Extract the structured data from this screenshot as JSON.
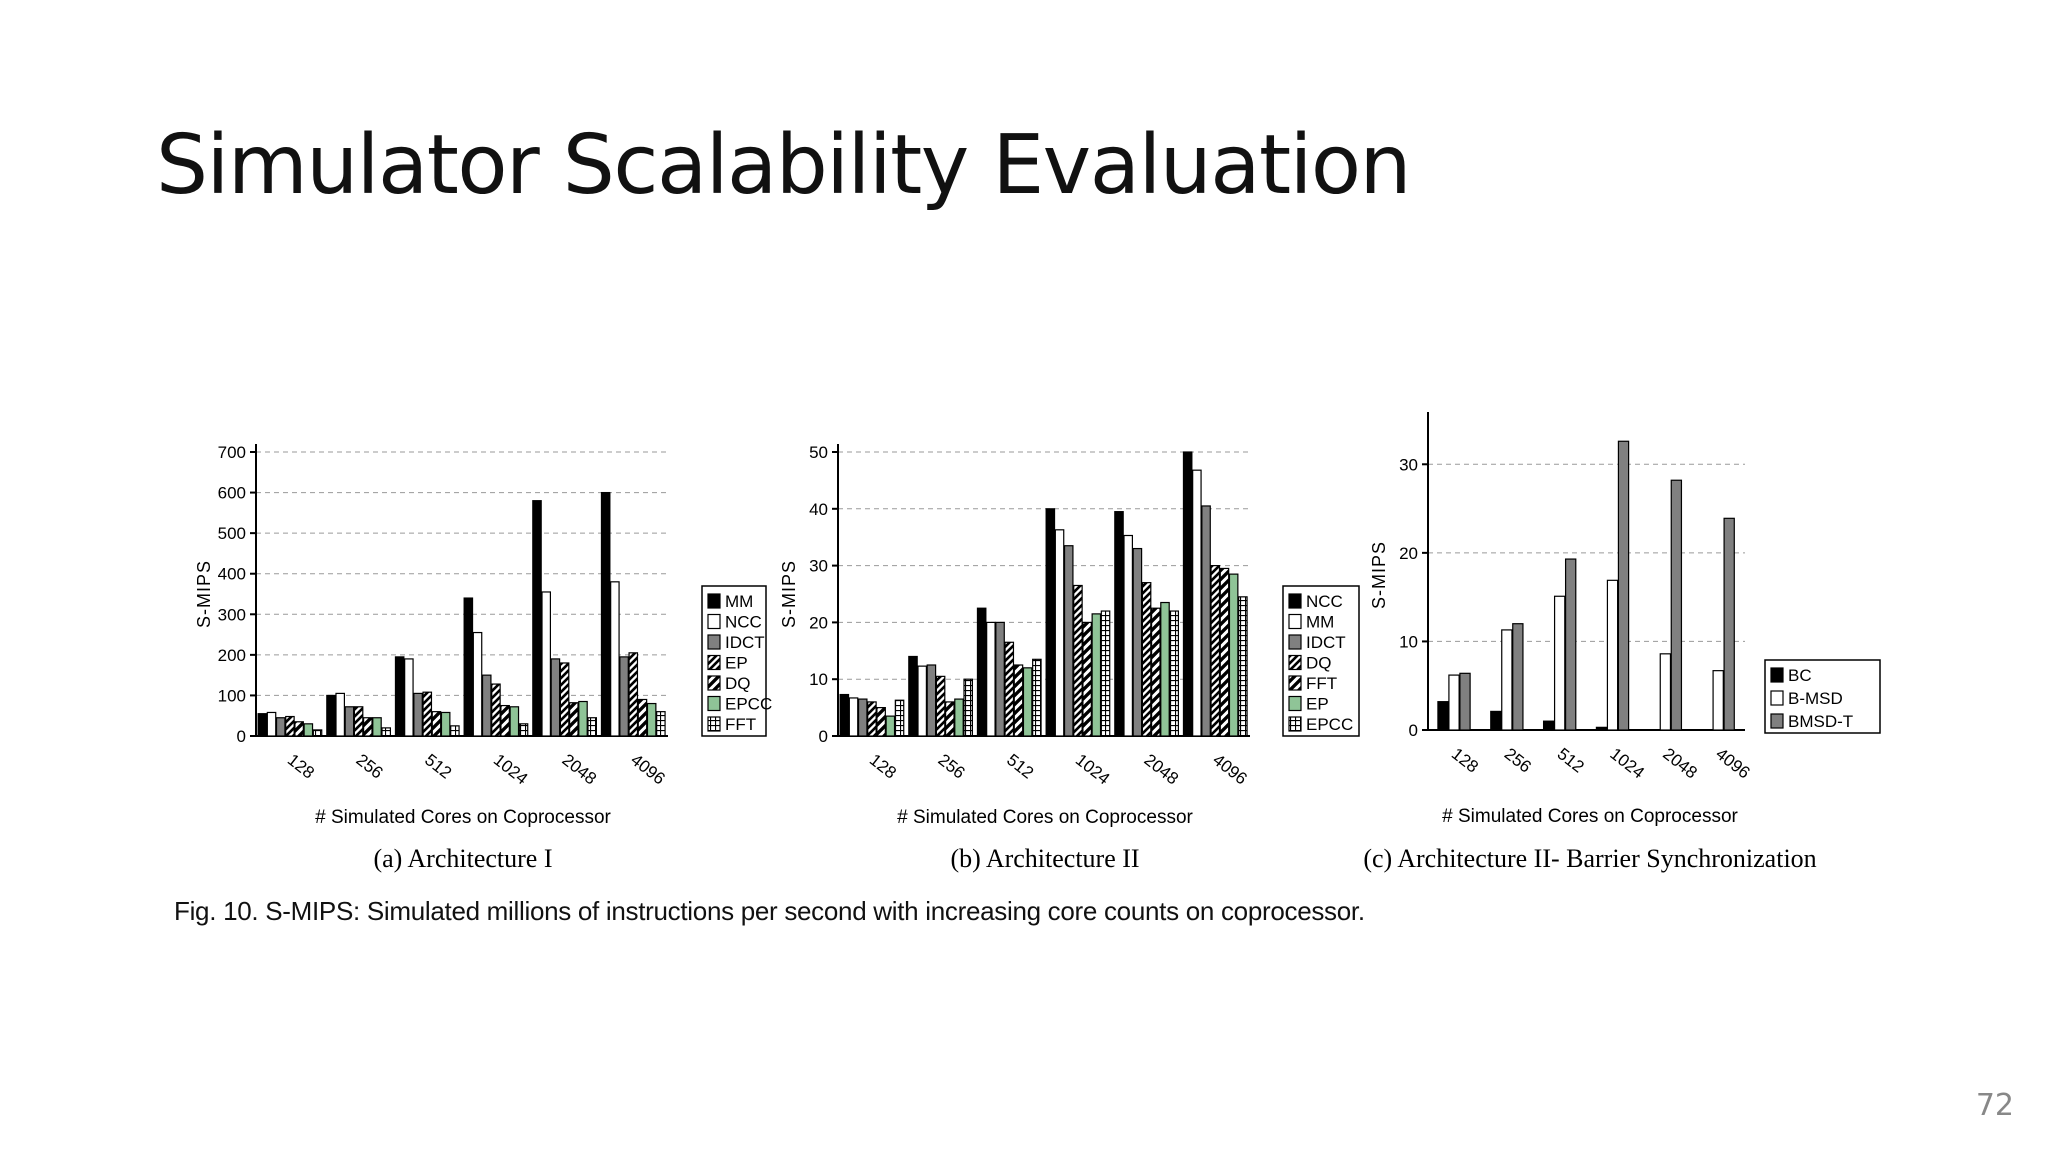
{
  "slide": {
    "title": "Simulator Scalability Evaluation",
    "caption": "Fig. 10. S-MIPS: Simulated millions of instructions per second with increasing core counts on coprocessor.",
    "page_number": "72"
  },
  "styles": {
    "solid-black": "#000000",
    "white": "#ffffff",
    "gray": "#808080",
    "green": "#8fc497",
    "pattern-diag": "diag-up",
    "pattern-zigzag": "zigzag",
    "pattern-grid": "grid"
  },
  "chart_data": [
    {
      "type": "bar",
      "subtitle": "(a) Architecture I",
      "xlabel": "# Simulated Cores on Coprocessor",
      "ylabel": "S-MIPS",
      "categories": [
        "128",
        "256",
        "512",
        "1024",
        "2048",
        "4096"
      ],
      "ylim": [
        0,
        700
      ],
      "yticks": [
        "0",
        "100",
        "200",
        "300",
        "400",
        "500",
        "600",
        "700"
      ],
      "grid": true,
      "legend": "right",
      "series": [
        {
          "name": "MM",
          "style": "solid-black",
          "values": [
            55,
            100,
            195,
            340,
            580,
            600
          ]
        },
        {
          "name": "NCC",
          "style": "white",
          "values": [
            58,
            105,
            190,
            255,
            355,
            380
          ]
        },
        {
          "name": "IDCT",
          "style": "gray",
          "values": [
            45,
            72,
            105,
            150,
            190,
            195
          ]
        },
        {
          "name": "EP",
          "style": "pattern-diag",
          "values": [
            48,
            72,
            108,
            128,
            180,
            205
          ]
        },
        {
          "name": "DQ",
          "style": "pattern-zigzag",
          "values": [
            35,
            45,
            60,
            75,
            82,
            90
          ]
        },
        {
          "name": "EPCC",
          "style": "green",
          "values": [
            30,
            45,
            58,
            72,
            85,
            80
          ]
        },
        {
          "name": "FFT",
          "style": "pattern-grid",
          "values": [
            15,
            20,
            25,
            30,
            45,
            60
          ]
        }
      ]
    },
    {
      "type": "bar",
      "subtitle": "(b) Architecture II",
      "xlabel": "# Simulated Cores on Coprocessor",
      "ylabel": "S-MIPS",
      "categories": [
        "128",
        "256",
        "512",
        "1024",
        "2048",
        "4096"
      ],
      "ylim": [
        0,
        50
      ],
      "yticks": [
        "0",
        "10",
        "20",
        "30",
        "40",
        "50"
      ],
      "grid": true,
      "legend": "right",
      "series": [
        {
          "name": "NCC",
          "style": "solid-black",
          "values": [
            7.3,
            14,
            22.5,
            40,
            39.5,
            50
          ]
        },
        {
          "name": "MM",
          "style": "white",
          "values": [
            6.7,
            12.3,
            20,
            36.3,
            35.3,
            46.8
          ]
        },
        {
          "name": "IDCT",
          "style": "gray",
          "values": [
            6.5,
            12.5,
            20,
            33.5,
            33,
            40.5
          ]
        },
        {
          "name": "DQ",
          "style": "pattern-diag",
          "values": [
            6,
            10.5,
            16.5,
            26.5,
            27,
            30
          ]
        },
        {
          "name": "FFT",
          "style": "pattern-zigzag",
          "values": [
            5,
            6,
            12.5,
            20,
            22.5,
            29.5
          ]
        },
        {
          "name": "EP",
          "style": "green",
          "values": [
            3.5,
            6.5,
            12,
            21.5,
            23.5,
            28.5
          ]
        },
        {
          "name": "EPCC",
          "style": "pattern-grid",
          "values": [
            6.3,
            10,
            13.5,
            22,
            22,
            24.5
          ]
        }
      ]
    },
    {
      "type": "bar",
      "subtitle": "(c) Architecture II- Barrier Synchronization",
      "xlabel": "# Simulated Cores on Coprocessor",
      "ylabel": "S-MIPS",
      "categories": [
        "128",
        "256",
        "512",
        "1024",
        "2048",
        "4096"
      ],
      "ylim": [
        0,
        35
      ],
      "yticks": [
        "0",
        "10",
        "20",
        "30"
      ],
      "grid": true,
      "legend": "right",
      "series": [
        {
          "name": "BC",
          "style": "solid-black",
          "values": [
            3.2,
            2.1,
            1,
            0.3,
            0,
            0
          ]
        },
        {
          "name": "B-MSD",
          "style": "white",
          "values": [
            6.2,
            11.3,
            15.1,
            16.9,
            8.6,
            6.7
          ]
        },
        {
          "name": "BMSD-T",
          "style": "gray",
          "values": [
            6.4,
            12,
            19.3,
            32.6,
            28.2,
            23.9
          ]
        }
      ]
    }
  ]
}
